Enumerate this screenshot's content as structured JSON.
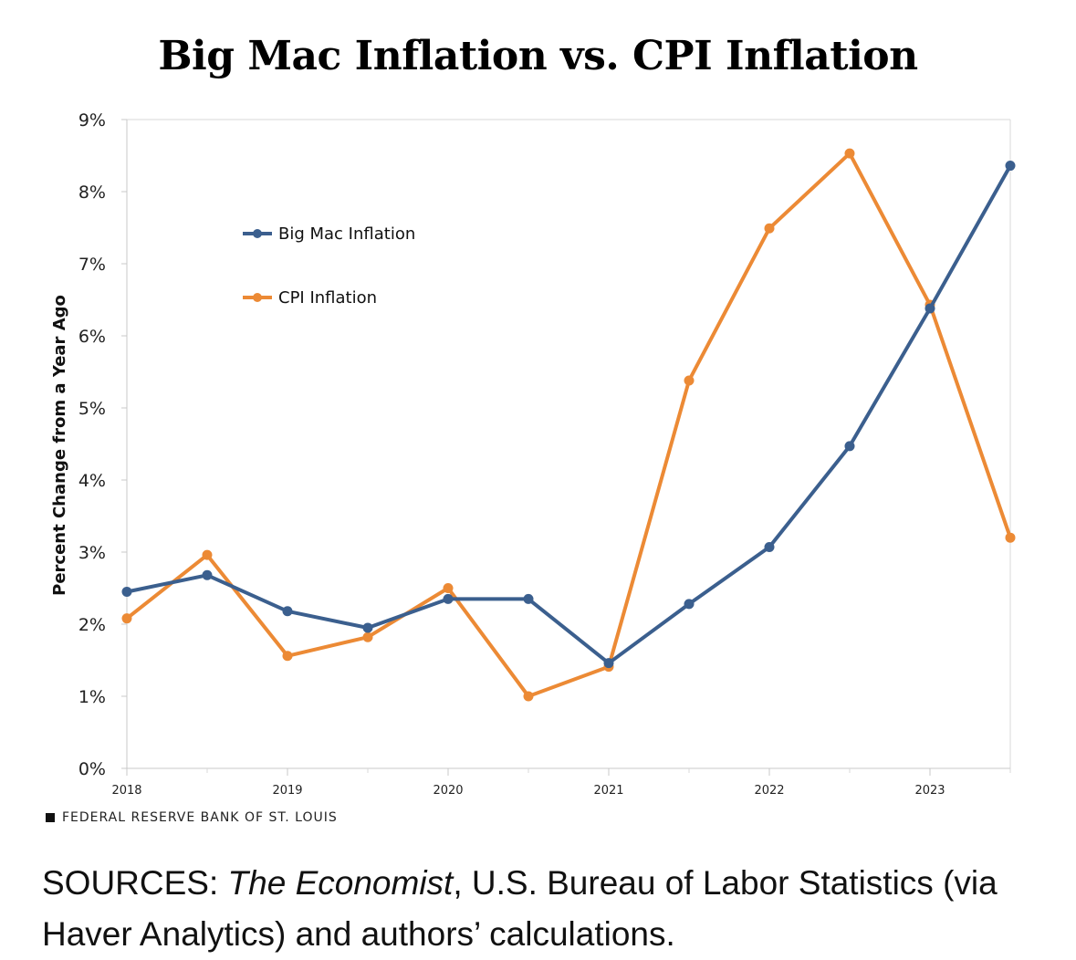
{
  "chart_data": {
    "type": "line",
    "title": "Big Mac Inflation vs. CPI Inflation",
    "ylabel": "Percent Change from a Year Ago",
    "xlabel": "",
    "ylim": [
      0,
      9
    ],
    "yticks": [
      "0%",
      "1%",
      "2%",
      "3%",
      "4%",
      "5%",
      "6%",
      "7%",
      "8%",
      "9%"
    ],
    "xlim": [
      2018,
      2023.5
    ],
    "xticks": [
      "2018",
      "2019",
      "2020",
      "2021",
      "2022",
      "2023"
    ],
    "x": [
      2018.0,
      2018.5,
      2019.0,
      2019.5,
      2020.0,
      2020.5,
      2021.0,
      2021.5,
      2022.0,
      2022.5,
      2023.0,
      2023.5
    ],
    "series": [
      {
        "name": "Big Mac Inflation",
        "color": "#3b5f8e",
        "values": [
          2.45,
          2.68,
          2.18,
          1.95,
          2.35,
          2.35,
          1.46,
          2.28,
          3.07,
          4.47,
          6.38,
          8.36
        ]
      },
      {
        "name": "CPI Inflation",
        "color": "#ec8a35",
        "values": [
          2.08,
          2.96,
          1.56,
          1.82,
          2.5,
          1.0,
          1.41,
          5.38,
          7.49,
          8.53,
          6.43,
          3.2
        ]
      }
    ],
    "grid": "horizontal-top-only",
    "legend_position": "top-left-inside"
  },
  "credit": "FEDERAL RESERVE BANK OF ST. LOUIS",
  "sources": {
    "prefix": "SOURCES: ",
    "italic": "The Economist",
    "suffix": ", U.S. Bureau of Labor Statistics (via Haver Analytics) and authors’ calculations."
  }
}
